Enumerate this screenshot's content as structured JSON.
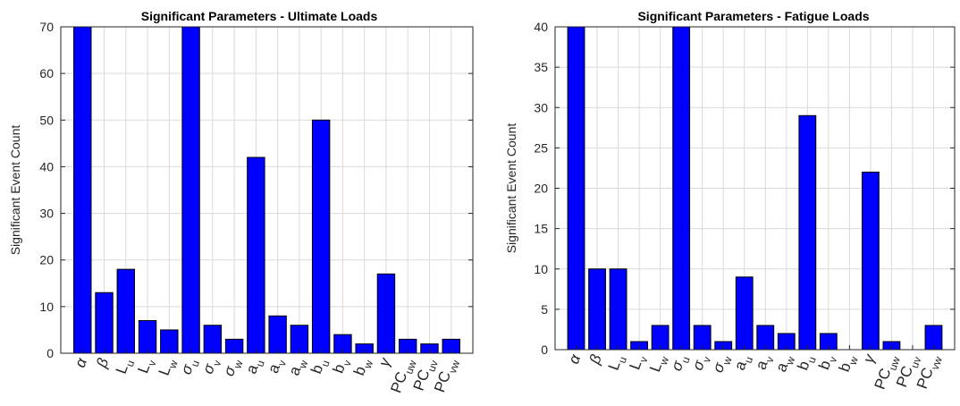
{
  "chart_data": [
    {
      "type": "bar",
      "title": "Significant Parameters - Ultimate Loads",
      "xlabel": "",
      "ylabel": "Significant Event Count",
      "ylim": [
        0,
        70
      ],
      "yticks": [
        0,
        10,
        20,
        30,
        40,
        50,
        60,
        70
      ],
      "grid": true,
      "bar_color": "#0000FF",
      "categories": [
        {
          "base": "α",
          "sub": "",
          "greek": true
        },
        {
          "base": "β",
          "sub": "",
          "greek": true
        },
        {
          "base": "L",
          "sub": "u",
          "greek": false
        },
        {
          "base": "L",
          "sub": "v",
          "greek": false
        },
        {
          "base": "L",
          "sub": "w",
          "greek": false
        },
        {
          "base": "σ",
          "sub": "u",
          "greek": true
        },
        {
          "base": "σ",
          "sub": "v",
          "greek": true
        },
        {
          "base": "σ",
          "sub": "w",
          "greek": true
        },
        {
          "base": "a",
          "sub": "u",
          "greek": false
        },
        {
          "base": "a",
          "sub": "v",
          "greek": false
        },
        {
          "base": "a",
          "sub": "w",
          "greek": false
        },
        {
          "base": "b",
          "sub": "u",
          "greek": false
        },
        {
          "base": "b",
          "sub": "v",
          "greek": false
        },
        {
          "base": "b",
          "sub": "w",
          "greek": false
        },
        {
          "base": "γ",
          "sub": "",
          "greek": true
        },
        {
          "base": "PC",
          "sub": "uw",
          "greek": false
        },
        {
          "base": "PC",
          "sub": "uv",
          "greek": false
        },
        {
          "base": "PC",
          "sub": "vw",
          "greek": false
        }
      ],
      "values": [
        70,
        13,
        18,
        7,
        5,
        70,
        6,
        3,
        42,
        8,
        6,
        50,
        4,
        2,
        17,
        3,
        2,
        3
      ]
    },
    {
      "type": "bar",
      "title": "Significant Parameters - Fatigue Loads",
      "xlabel": "",
      "ylabel": "Significant Event Count",
      "ylim": [
        0,
        40
      ],
      "yticks": [
        0,
        5,
        10,
        15,
        20,
        25,
        30,
        35,
        40
      ],
      "grid": true,
      "bar_color": "#0000FF",
      "categories": [
        {
          "base": "α",
          "sub": "",
          "greek": true
        },
        {
          "base": "β",
          "sub": "",
          "greek": true
        },
        {
          "base": "L",
          "sub": "u",
          "greek": false
        },
        {
          "base": "L",
          "sub": "v",
          "greek": false
        },
        {
          "base": "L",
          "sub": "w",
          "greek": false
        },
        {
          "base": "σ",
          "sub": "u",
          "greek": true
        },
        {
          "base": "σ",
          "sub": "v",
          "greek": true
        },
        {
          "base": "σ",
          "sub": "w",
          "greek": true
        },
        {
          "base": "a",
          "sub": "u",
          "greek": false
        },
        {
          "base": "a",
          "sub": "v",
          "greek": false
        },
        {
          "base": "a",
          "sub": "w",
          "greek": false
        },
        {
          "base": "b",
          "sub": "u",
          "greek": false
        },
        {
          "base": "b",
          "sub": "v",
          "greek": false
        },
        {
          "base": "b",
          "sub": "w",
          "greek": false
        },
        {
          "base": "γ",
          "sub": "",
          "greek": true
        },
        {
          "base": "PC",
          "sub": "uw",
          "greek": false
        },
        {
          "base": "PC",
          "sub": "uv",
          "greek": false
        },
        {
          "base": "PC",
          "sub": "vw",
          "greek": false
        }
      ],
      "values": [
        40,
        10,
        10,
        1,
        3,
        40,
        3,
        1,
        9,
        3,
        2,
        29,
        2,
        0,
        22,
        1,
        0,
        3
      ]
    }
  ]
}
